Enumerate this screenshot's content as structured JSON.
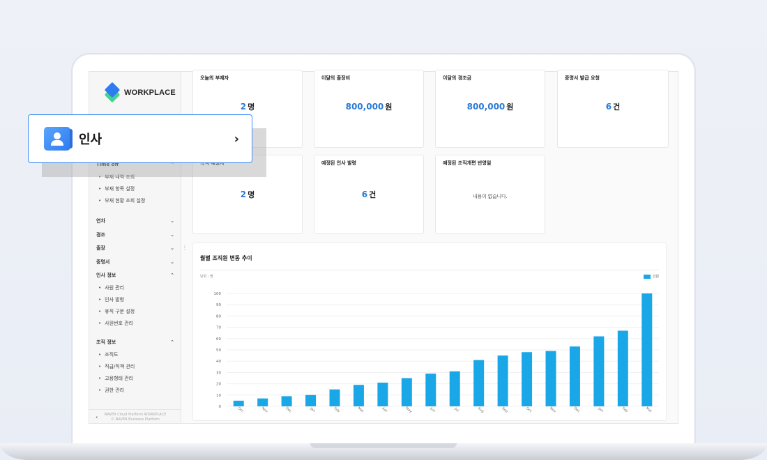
{
  "app": {
    "logo_text": "WORKPLACE",
    "footer_line1": "NAVER Cloud Platform WORKPLACE",
    "footer_line2": "© NAVER Business Platform",
    "collapse_glyph": "‹"
  },
  "highlight": {
    "label": "인사",
    "arrow": "›"
  },
  "sidebar": {
    "sections": [
      {
        "label": "Time off",
        "expanded": true,
        "items": [
          "부재 내역 조회",
          "부재 항목 설정",
          "부재 현황 조회 설정"
        ]
      },
      {
        "label": "연차",
        "expanded": false,
        "items": []
      },
      {
        "label": "경조",
        "expanded": false,
        "items": []
      },
      {
        "label": "출장",
        "expanded": false,
        "items": []
      },
      {
        "label": "증명서",
        "expanded": false,
        "items": []
      },
      {
        "label": "인사 정보",
        "expanded": true,
        "items": [
          "사원 관리",
          "인사 발령",
          "휴직 구분 설정",
          "사원번호 관리"
        ]
      },
      {
        "label": "조직 정보",
        "expanded": true,
        "items": [
          "조직도",
          "직급/직책 관리",
          "고용형태 관리",
          "권한 관리"
        ]
      }
    ]
  },
  "cards": [
    {
      "title": "오늘의 부재자",
      "value": "2",
      "unit": "명"
    },
    {
      "title": "이달의 출장비",
      "value": "800,000",
      "unit": "원"
    },
    {
      "title": "이달의 경조금",
      "value": "800,000",
      "unit": "원"
    },
    {
      "title": "증명서 발급 요청",
      "value": "6",
      "unit": "건"
    },
    {
      "title": "복직 예정자",
      "value": "2",
      "unit": "명"
    },
    {
      "title": "예정된 인사 발령",
      "value": "6",
      "unit": "건"
    },
    {
      "title": "예정된 조직개편 반영일",
      "empty_text": "내용이 없습니다."
    }
  ],
  "chart": {
    "title": "월별 조직원 변동 추이",
    "unit_label": "단위 : 명",
    "legend_label": "인원"
  },
  "chart_data": {
    "type": "bar",
    "title": "월별 조직원 변동 추이",
    "categories": [
      "Oct",
      "Nov",
      "Dec",
      "Jan",
      "Feb",
      "Mar",
      "Apr",
      "May",
      "Jun",
      "Jul",
      "Aug",
      "Sep",
      "Oct",
      "Nov",
      "Dec",
      "Jan",
      "Feb",
      "Mar"
    ],
    "series": [
      {
        "name": "인원",
        "values": [
          5,
          7,
          9,
          10,
          15,
          19,
          21,
          25,
          29,
          31,
          41,
          45,
          48,
          49,
          53,
          62,
          67,
          100
        ]
      }
    ],
    "ylim": [
      0,
      100
    ],
    "yticks": [
      0,
      10,
      20,
      30,
      40,
      50,
      60,
      70,
      80,
      90,
      100
    ],
    "grid": true,
    "legend": "top-right",
    "color": "#1aa7e8"
  }
}
